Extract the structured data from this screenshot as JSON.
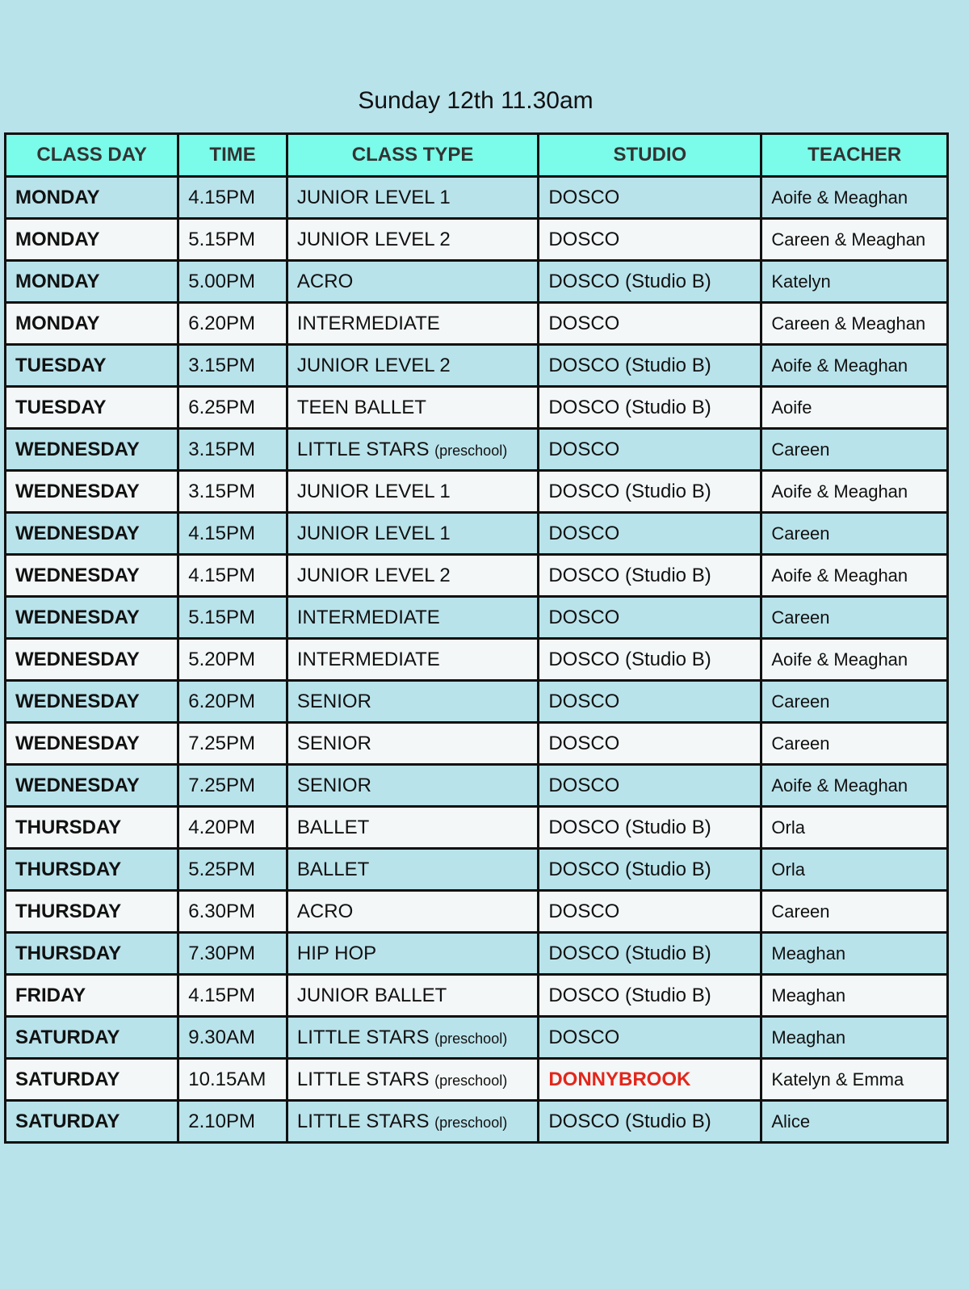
{
  "title": "Sunday 12th 11.30am",
  "columns": [
    "CLASS DAY",
    "TIME",
    "CLASS TYPE",
    "STUDIO",
    "TEACHER"
  ],
  "highlight_color": "#e3261b",
  "rows": [
    {
      "day": "MONDAY",
      "time": "4.15PM",
      "type": "JUNIOR LEVEL 1",
      "note": "",
      "studio": "DOSCO",
      "teacher": "Aoife & Meaghan"
    },
    {
      "day": "MONDAY",
      "time": "5.15PM",
      "type": "JUNIOR LEVEL 2",
      "note": "",
      "studio": "DOSCO",
      "teacher": "Careen & Meaghan"
    },
    {
      "day": "MONDAY",
      "time": "5.00PM",
      "type": "ACRO",
      "note": "",
      "studio": "DOSCO (Studio B)",
      "teacher": "Katelyn"
    },
    {
      "day": "MONDAY",
      "time": "6.20PM",
      "type": "INTERMEDIATE",
      "note": "",
      "studio": "DOSCO",
      "teacher": "Careen & Meaghan"
    },
    {
      "day": "TUESDAY",
      "time": "3.15PM",
      "type": "JUNIOR LEVEL 2",
      "note": "",
      "studio": "DOSCO (Studio B)",
      "teacher": "Aoife & Meaghan"
    },
    {
      "day": "TUESDAY",
      "time": "6.25PM",
      "type": "TEEN BALLET",
      "note": "",
      "studio": "DOSCO (Studio B)",
      "teacher": "Aoife"
    },
    {
      "day": "WEDNESDAY",
      "time": "3.15PM",
      "type": "LITTLE STARS",
      "note": "(preschool)",
      "studio": "DOSCO",
      "teacher": "Careen"
    },
    {
      "day": "WEDNESDAY",
      "time": "3.15PM",
      "type": "JUNIOR LEVEL 1",
      "note": "",
      "studio": "DOSCO (Studio B)",
      "teacher": "Aoife & Meaghan"
    },
    {
      "day": "WEDNESDAY",
      "time": "4.15PM",
      "type": "JUNIOR LEVEL 1",
      "note": "",
      "studio": "DOSCO",
      "teacher": "Careen"
    },
    {
      "day": "WEDNESDAY",
      "time": "4.15PM",
      "type": "JUNIOR LEVEL 2",
      "note": "",
      "studio": "DOSCO (Studio B)",
      "teacher": "Aoife & Meaghan"
    },
    {
      "day": "WEDNESDAY",
      "time": "5.15PM",
      "type": "INTERMEDIATE",
      "note": "",
      "studio": "DOSCO",
      "teacher": "Careen"
    },
    {
      "day": "WEDNESDAY",
      "time": "5.20PM",
      "type": "INTERMEDIATE",
      "note": "",
      "studio": "DOSCO (Studio B)",
      "teacher": "Aoife & Meaghan"
    },
    {
      "day": "WEDNESDAY",
      "time": "6.20PM",
      "type": "SENIOR",
      "note": "",
      "studio": "DOSCO",
      "teacher": "Careen"
    },
    {
      "day": "WEDNESDAY",
      "time": "7.25PM",
      "type": "SENIOR",
      "note": "",
      "studio": "DOSCO",
      "teacher": "Careen"
    },
    {
      "day": "WEDNESDAY",
      "time": "7.25PM",
      "type": "SENIOR",
      "note": "",
      "studio": "DOSCO",
      "teacher": "Aoife & Meaghan"
    },
    {
      "day": "THURSDAY",
      "time": "4.20PM",
      "type": "BALLET",
      "note": "",
      "studio": "DOSCO (Studio B)",
      "teacher": "Orla"
    },
    {
      "day": "THURSDAY",
      "time": "5.25PM",
      "type": "BALLET",
      "note": "",
      "studio": "DOSCO (Studio B)",
      "teacher": "Orla"
    },
    {
      "day": "THURSDAY",
      "time": "6.30PM",
      "type": "ACRO",
      "note": "",
      "studio": "DOSCO",
      "teacher": "Careen"
    },
    {
      "day": "THURSDAY",
      "time": "7.30PM",
      "type": "HIP HOP",
      "note": "",
      "studio": "DOSCO (Studio B)",
      "teacher": "Meaghan"
    },
    {
      "day": "FRIDAY",
      "time": "4.15PM",
      "type": "JUNIOR BALLET",
      "note": "",
      "studio": "DOSCO (Studio B)",
      "teacher": "Meaghan"
    },
    {
      "day": "SATURDAY",
      "time": "9.30AM",
      "type": "LITTLE STARS",
      "note": "(preschool)",
      "studio": "DOSCO",
      "teacher": "Meaghan"
    },
    {
      "day": "SATURDAY",
      "time": "10.15AM",
      "type": "LITTLE STARS",
      "note": "(preschool)",
      "studio": "DONNYBROOK",
      "studio_highlight": true,
      "teacher": "Katelyn & Emma"
    },
    {
      "day": "SATURDAY",
      "time": "2.10PM",
      "type": "LITTLE STARS",
      "note": "(preschool)",
      "studio": "DOSCO (Studio B)",
      "teacher": "Alice"
    }
  ]
}
